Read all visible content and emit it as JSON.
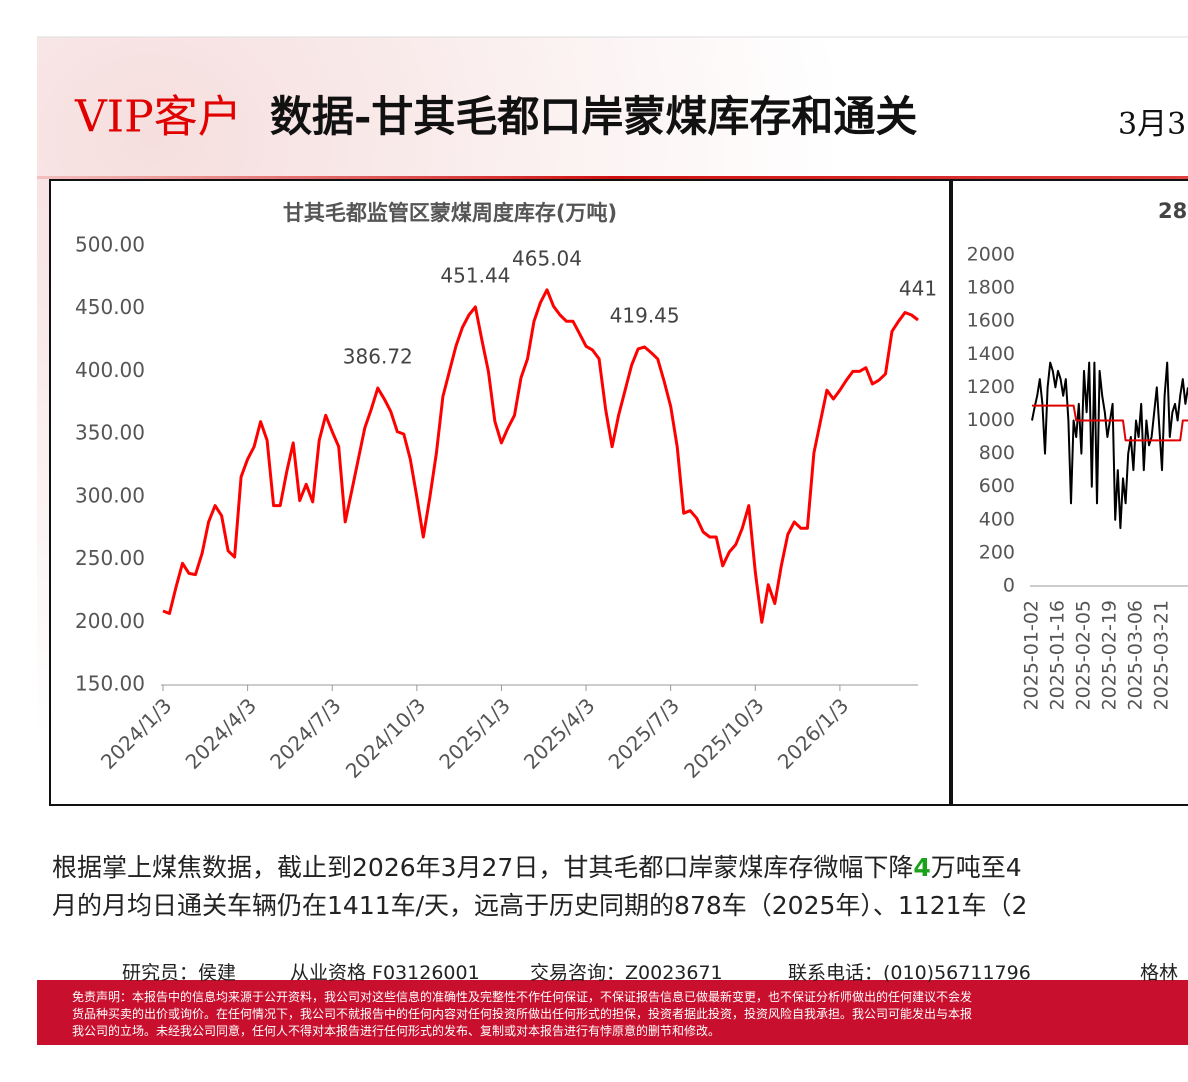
{
  "header": {
    "title_highlight": "VIP客户",
    "title": "数据-甘其毛都口岸蒙煤库存和通关",
    "date": "3月3"
  },
  "chart_data": [
    {
      "type": "line",
      "title": "甘其毛都监管区蒙煤周度库存(万吨)",
      "color": "#ff0000",
      "categories": [
        "2024/1/3",
        null,
        null,
        null,
        null,
        null,
        null,
        null,
        null,
        null,
        null,
        null,
        null,
        "2024/4/3",
        null,
        null,
        null,
        null,
        null,
        null,
        null,
        null,
        null,
        null,
        null,
        null,
        "2024/7/3",
        null,
        null,
        null,
        null,
        null,
        null,
        null,
        null,
        null,
        null,
        null,
        null,
        "2024/10/3",
        null,
        null,
        null,
        null,
        null,
        null,
        null,
        null,
        null,
        null,
        null,
        null,
        "2025/1/3",
        null,
        null,
        null,
        null,
        null,
        null,
        null,
        null,
        null,
        null,
        null,
        null,
        "2025/4/3",
        null,
        null,
        null,
        null,
        null,
        null,
        null,
        null,
        null,
        null,
        null,
        null,
        "2025/7/3",
        null,
        null,
        null,
        null,
        null,
        null,
        null,
        null,
        null,
        null,
        null,
        null,
        "2025/10/3",
        null,
        null,
        null,
        null,
        null,
        null,
        null,
        null,
        null,
        null,
        null,
        null,
        "2026/1/3",
        null,
        null,
        null,
        null,
        null,
        null,
        null,
        null,
        null,
        null,
        null,
        null
      ],
      "values": [
        209,
        207,
        228,
        247,
        239,
        238,
        255,
        280,
        293,
        285,
        257,
        252,
        316,
        330,
        340,
        360,
        345,
        293,
        293,
        320,
        343,
        297,
        310,
        296,
        345,
        365,
        352,
        340,
        280,
        305,
        330,
        355,
        370,
        386.72,
        378,
        368,
        352,
        350,
        330,
        300,
        268,
        300,
        335,
        380,
        400,
        420,
        435,
        445,
        451.44,
        425,
        400,
        360,
        343,
        355,
        365,
        395,
        410,
        440,
        455,
        465.04,
        452,
        445,
        440,
        440,
        430,
        420,
        417,
        410,
        370,
        340,
        365,
        385,
        405,
        418,
        419.45,
        415,
        410,
        392,
        372,
        340,
        287,
        289,
        283,
        272,
        268,
        268,
        245,
        256,
        262,
        275,
        293,
        240,
        200,
        230,
        215,
        245,
        270,
        280,
        275,
        275,
        335,
        360,
        385,
        378,
        385,
        393,
        400,
        400,
        403,
        390,
        393,
        398,
        432,
        440,
        447,
        445,
        441
      ],
      "value_labels": [
        null,
        null,
        null,
        null,
        null,
        null,
        null,
        null,
        null,
        null,
        null,
        null,
        null,
        null,
        null,
        null,
        null,
        null,
        null,
        null,
        null,
        null,
        null,
        null,
        null,
        null,
        null,
        null,
        null,
        null,
        null,
        null,
        null,
        "386.72",
        null,
        null,
        null,
        null,
        null,
        null,
        null,
        null,
        null,
        null,
        null,
        null,
        null,
        null,
        "451.44",
        null,
        null,
        null,
        null,
        null,
        null,
        null,
        null,
        null,
        null,
        "465.04",
        null,
        null,
        null,
        null,
        null,
        null,
        null,
        null,
        null,
        null,
        null,
        null,
        null,
        null,
        "419.45",
        null,
        null,
        null,
        null,
        null,
        null,
        null,
        null,
        null,
        null,
        null,
        null,
        null,
        null,
        null,
        null,
        null,
        null,
        null,
        null,
        null,
        null,
        null,
        null,
        null,
        null,
        null,
        null,
        null,
        null,
        null,
        null,
        null,
        null,
        null,
        null,
        null,
        null,
        null,
        null,
        null,
        "441"
      ],
      "ylim": [
        150,
        500
      ],
      "yticks": [
        {
          "value": 150,
          "label": "150.00"
        },
        {
          "value": 200,
          "label": "200.00"
        },
        {
          "value": 250,
          "label": "250.00"
        },
        {
          "value": 300,
          "label": "300.00"
        },
        {
          "value": 350,
          "label": "350.00"
        },
        {
          "value": 400,
          "label": "400.00"
        },
        {
          "value": 450,
          "label": "450.00"
        },
        {
          "value": 500,
          "label": "500.00"
        }
      ]
    },
    {
      "type": "line",
      "title": "28",
      "categories": [
        "2025-01-02",
        null,
        null,
        null,
        null,
        null,
        null,
        null,
        null,
        null,
        "2025-01-16",
        null,
        null,
        null,
        null,
        null,
        null,
        null,
        null,
        null,
        "2025-02-05",
        null,
        null,
        null,
        null,
        null,
        null,
        null,
        null,
        null,
        "2025-02-19",
        null,
        null,
        null,
        null,
        null,
        null,
        null,
        null,
        null,
        "2025-03-06",
        null,
        null,
        null,
        null,
        null,
        null,
        null,
        null,
        null,
        "2025-03-21",
        null,
        null,
        null,
        null,
        null,
        null,
        null,
        null,
        null,
        null
      ],
      "series": [
        {
          "color": "#000000",
          "values": [
            1000,
            1080,
            1150,
            1250,
            1100,
            800,
            1200,
            1350,
            1300,
            1200,
            1300,
            1250,
            1150,
            1250,
            1000,
            500,
            1000,
            900,
            1100,
            800,
            1300,
            1050,
            1350,
            600,
            1350,
            500,
            1300,
            1150,
            1050,
            900,
            1000,
            1100,
            400,
            700,
            350,
            650,
            500,
            800,
            900,
            700,
            1000,
            900,
            1100,
            700,
            1000,
            850,
            900,
            1050,
            1200,
            950,
            700,
            1150,
            1350,
            900,
            1050,
            1100,
            1000,
            1150,
            1250,
            1100,
            1200
          ]
        },
        {
          "color": "#e00000",
          "values": [
            1090,
            1090,
            1090,
            1090,
            1090,
            1090,
            1090,
            1090,
            1090,
            1090,
            1090,
            1090,
            1090,
            1090,
            1090,
            1090,
            1090,
            1000,
            1000,
            1000,
            1000,
            1000,
            1000,
            1000,
            1000,
            1000,
            1000,
            1000,
            1000,
            1000,
            1000,
            1000,
            1000,
            1000,
            1000,
            1000,
            880,
            880,
            880,
            880,
            880,
            880,
            880,
            880,
            880,
            880,
            880,
            880,
            880,
            880,
            880,
            880,
            880,
            880,
            880,
            880,
            880,
            880,
            1000,
            1000,
            1000
          ]
        }
      ],
      "ylim": [
        0,
        2000
      ],
      "yticks": [
        0,
        200,
        400,
        600,
        800,
        1000,
        1200,
        1400,
        1600,
        1800,
        2000
      ]
    }
  ],
  "summary": {
    "line1_before": "根据掌上煤焦数据，截止到2026年3月27日，甘其毛都口岸蒙煤库存微幅下降",
    "line1_highlight": "4",
    "line1_after": "万吨至4",
    "line2": "月的月均日通关车辆仍在1411车/天，远高于历史同期的878车（2025年）、1121车（2"
  },
  "footer": {
    "researcher": "研究员：侯建",
    "qualification": "从业资格 F03126001",
    "consulting": "交易咨询：Z0023671",
    "phone": "联系电话：(010)56711796",
    "company": "格林"
  },
  "disclaimer": [
    "免责声明：本报告中的信息均来源于公开资料，我公司对这些信息的准确性及完整性不作任何保证，不保证报告信息已做最新变更，也不保证分析师做出的任何建议不会发",
    "货品种买卖的出价或询价。在任何情况下，我公司不就报告中的任何内容对任何投资所做出任何形式的担保，投资者据此投资，投资风险自我承担。我公司可能发出与本报",
    "我公司的立场。未经我公司同意，任何人不得对本报告进行任何形式的发布、复制或对本报告进行有悖原意的删节和修改。"
  ]
}
